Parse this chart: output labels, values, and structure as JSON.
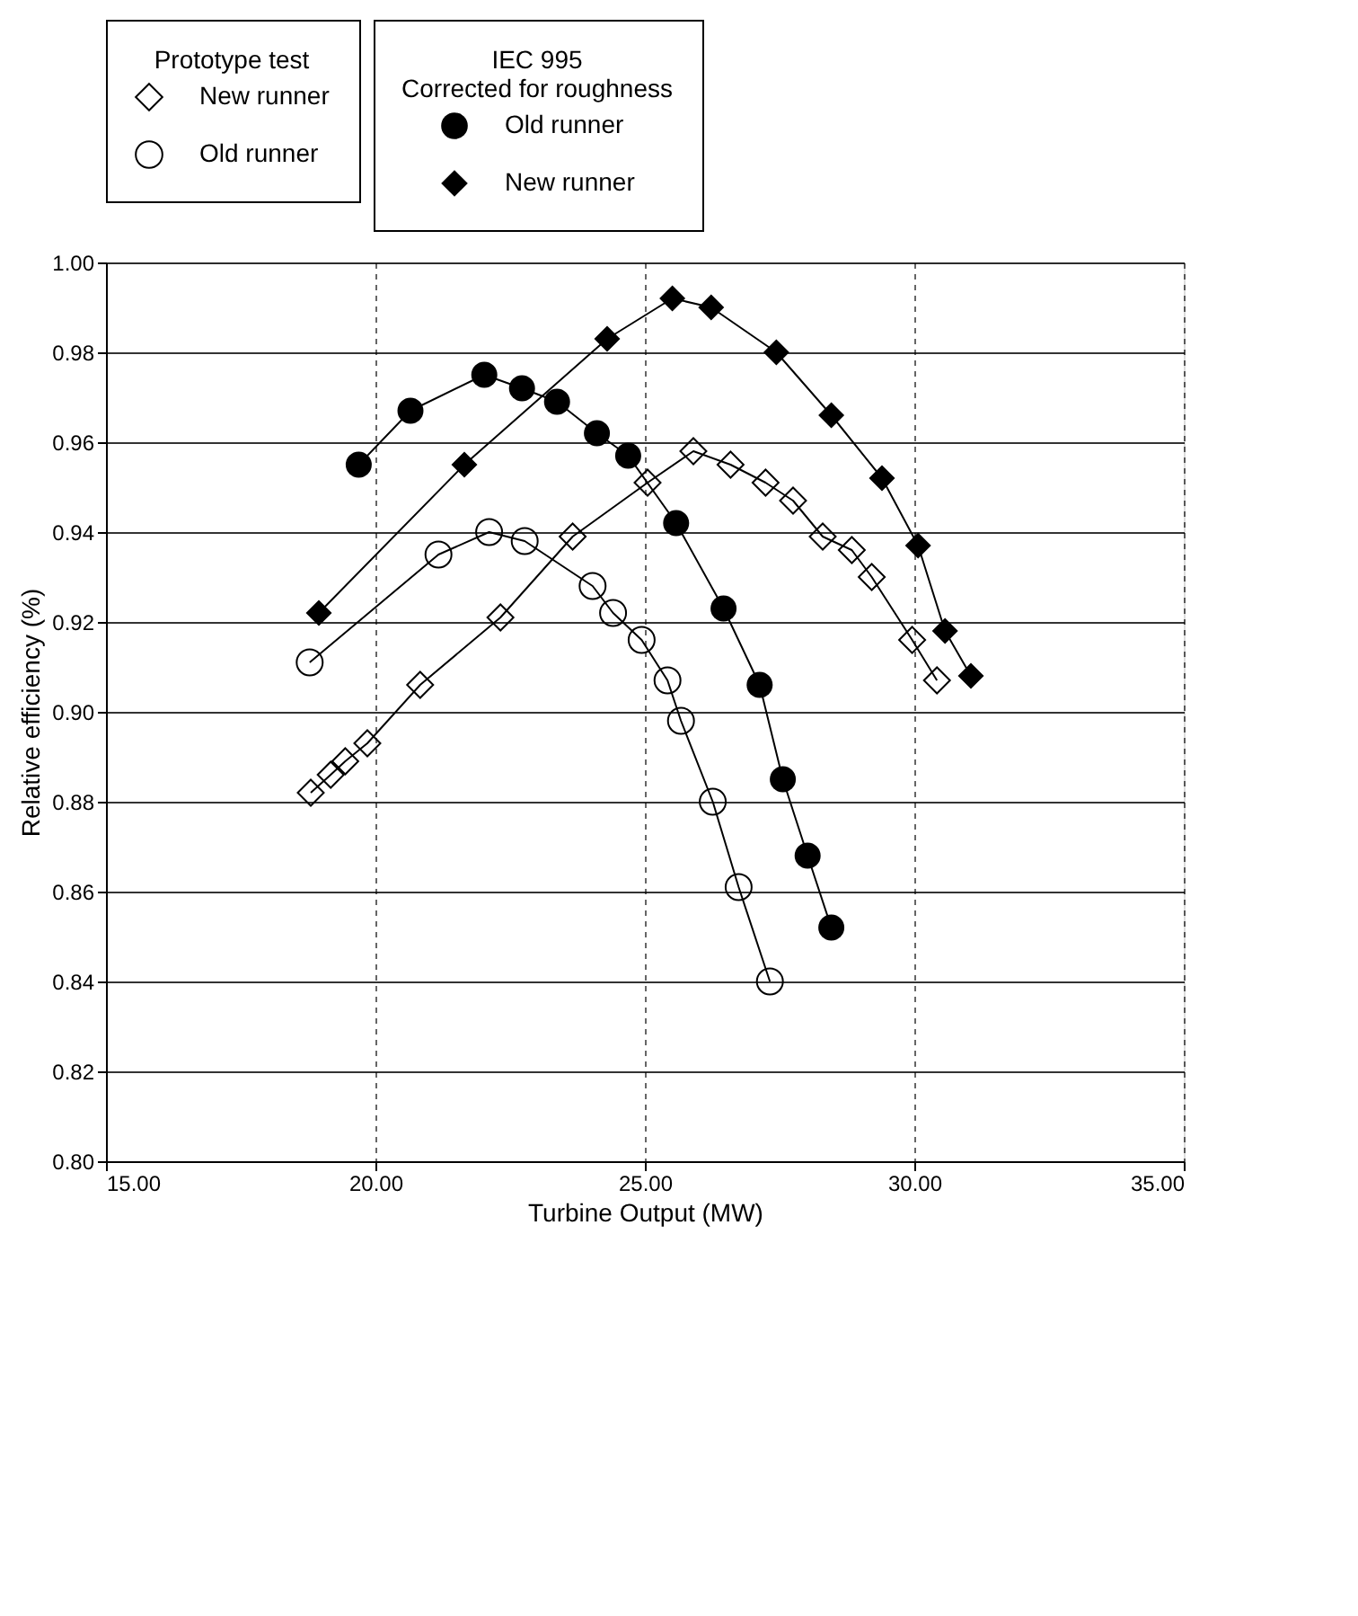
{
  "chart_data": {
    "type": "line",
    "xlabel": "Turbine Output (MW)",
    "ylabel": "Relative efficiency (%)",
    "annotations": [
      "Prototype test",
      "IEC 995\nCorrected for roughness"
    ],
    "xlim": [
      15,
      35
    ],
    "xticks": [
      {
        "value": 15,
        "label": "15.00"
      },
      {
        "value": 20,
        "label": "20.00"
      },
      {
        "value": 25,
        "label": "25.00"
      },
      {
        "value": 30,
        "label": "30.00"
      },
      {
        "value": 35,
        "label": "35.00"
      }
    ],
    "ylim": [
      0.8,
      1.0
    ],
    "yticks": [
      {
        "value": 0.8,
        "label": "0.80"
      },
      {
        "value": 0.82,
        "label": "0.82"
      },
      {
        "value": 0.84,
        "label": "0.84"
      },
      {
        "value": 0.86,
        "label": "0.86"
      },
      {
        "value": 0.88,
        "label": "0.88"
      },
      {
        "value": 0.9,
        "label": "0.90"
      },
      {
        "value": 0.92,
        "label": "0.92"
      },
      {
        "value": 0.94,
        "label": "0.94"
      },
      {
        "value": 0.96,
        "label": "0.96"
      },
      {
        "value": 0.98,
        "label": "0.98"
      },
      {
        "value": 1.0,
        "label": "1.00"
      }
    ],
    "grid": true,
    "legend": "top",
    "series": [
      {
        "name": "New runner",
        "color": "#000000",
        "marker": "diamond",
        "x": [
          18.8,
          19.17,
          19.44,
          19.85,
          20.83,
          22.32,
          23.66,
          25.05,
          25.9,
          26.59,
          27.24,
          27.75,
          28.3,
          28.84,
          29.21,
          29.96,
          30.42
        ],
        "values": [
          0.882,
          0.886,
          0.889,
          0.893,
          0.906,
          0.921,
          0.939,
          0.951,
          0.958,
          0.955,
          0.951,
          0.947,
          0.939,
          0.936,
          0.93,
          0.916,
          0.907
        ]
      },
      {
        "name": "Old runner",
        "color": "#000000",
        "marker": "circle",
        "x": [
          18.78,
          21.17,
          22.11,
          22.77,
          24.03,
          24.41,
          24.94,
          25.42,
          25.67,
          26.26,
          26.74,
          27.32
        ],
        "values": [
          0.911,
          0.935,
          0.94,
          0.938,
          0.928,
          0.922,
          0.916,
          0.907,
          0.898,
          0.88,
          0.861,
          0.84
        ]
      },
      {
        "name": "Old runner",
        "color": "#000000",
        "marker": "circle",
        "x": [
          19.69,
          20.65,
          22.02,
          22.72,
          23.37,
          24.11,
          24.69,
          25.58,
          26.46,
          27.13,
          27.56,
          28.02,
          28.46
        ],
        "values": [
          0.955,
          0.967,
          0.975,
          0.972,
          0.969,
          0.962,
          0.957,
          0.942,
          0.923,
          0.906,
          0.885,
          0.868,
          0.852
        ]
      },
      {
        "name": "New runner",
        "color": "#000000",
        "marker": "diamond",
        "x": [
          18.95,
          21.65,
          24.3,
          25.51,
          26.23,
          27.44,
          28.46,
          29.4,
          30.07,
          30.57,
          31.05
        ],
        "values": [
          0.922,
          0.955,
          0.983,
          0.992,
          0.99,
          0.98,
          0.966,
          0.952,
          0.937,
          0.918,
          0.908
        ]
      }
    ]
  }
}
